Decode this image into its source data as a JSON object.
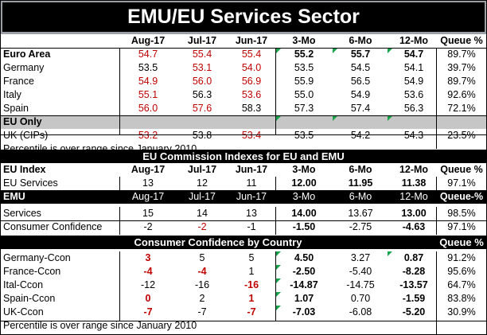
{
  "title": "EMU/EU Services Sector",
  "section1": {
    "headers": [
      "",
      "Aug-17",
      "Jul-17",
      "Jun-17",
      "3-Mo",
      "6-Mo",
      "12-Mo",
      "Queue %"
    ],
    "rows": [
      [
        "Euro Area",
        "54.7",
        "55.4",
        "55.4",
        "55.2",
        "55.7",
        "54.7",
        "89.7%"
      ],
      [
        "Germany",
        "53.5",
        "53.1",
        "54.0",
        "53.5",
        "54.5",
        "54.1",
        "39.7%"
      ],
      [
        "France",
        "54.9",
        "56.0",
        "56.9",
        "55.9",
        "56.5",
        "54.9",
        "89.7%"
      ],
      [
        "Italy",
        "55.1",
        "56.3",
        "53.6",
        "55.0",
        "54.9",
        "53.6",
        "92.6%"
      ],
      [
        "Spain",
        "56.0",
        "57.6",
        "58.3",
        "57.3",
        "57.4",
        "56.3",
        "72.1%"
      ]
    ],
    "eu_only_label": "EU Only",
    "uk_row": [
      "UK (CIPs)",
      "53.2",
      "53.8",
      "53.4",
      "53.5",
      "54.2",
      "54.3",
      "23.5%"
    ],
    "note": "Percentile is over range since January 2010"
  },
  "section2": {
    "title": "EU Commission Indexes for EU and EMU",
    "eu_header": [
      "EU Index",
      "Aug-17",
      "Jul-17",
      "Jun-17",
      "3-Mo",
      "6-Mo",
      "12-Mo",
      "Queue %"
    ],
    "eu_row": [
      "EU Services",
      "13",
      "12",
      "11",
      "12.00",
      "11.95",
      "11.38",
      "97.1%"
    ],
    "emu_header": [
      "EMU",
      "Aug-17",
      "Jul-17",
      "Jun-17",
      "3-Mo",
      "6-Mo",
      "12-Mo",
      "Queue-%"
    ],
    "emu_rows": [
      [
        "Services",
        "15",
        "14",
        "13",
        "14.00",
        "13.67",
        "13.00",
        "98.5%"
      ],
      [
        "Consumer Confidence",
        "-2",
        "-2",
        "-1",
        "-1.50",
        "-2.75",
        "-4.63",
        "97.1%"
      ]
    ]
  },
  "section3": {
    "title": "Consumer Confidence by Country",
    "queue_label": "Queue %",
    "rows": [
      [
        "Germany-Ccon",
        "3",
        "5",
        "5",
        "4.50",
        "3.27",
        "0.87",
        "91.2%"
      ],
      [
        "France-Ccon",
        "-4",
        "-4",
        "1",
        "-2.50",
        "-5.40",
        "-8.28",
        "95.6%"
      ],
      [
        "Ital-Ccon",
        "-12",
        "-16",
        "-16",
        "-14.87",
        "-14.75",
        "-13.57",
        "64.7%"
      ],
      [
        "Spain-Ccon",
        "0",
        "2",
        "1",
        "1.07",
        "0.70",
        "-1.59",
        "83.8%"
      ],
      [
        "UK-Ccon",
        "-7",
        "-7",
        "-7",
        "-7.03",
        "-6.08",
        "-5.20",
        "30.9%"
      ]
    ],
    "note": "Percentile is over range since January 2010"
  },
  "colors": {
    "negative_or_highlight": "#c00000",
    "header_bg": "#000000",
    "gray_band": "#c6c6c6",
    "marker": "#19a34a"
  }
}
